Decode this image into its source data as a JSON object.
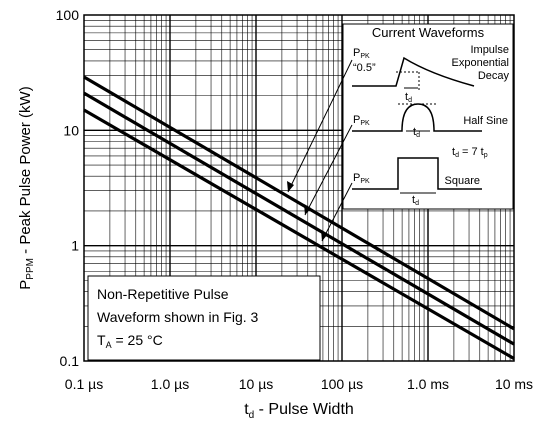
{
  "chart_data": {
    "type": "line",
    "xscale": "log",
    "yscale": "log",
    "xlim": [
      1e-07,
      0.01
    ],
    "ylim": [
      0.1,
      100
    ],
    "grid": true,
    "x_ticks": [
      {
        "value": 1e-07,
        "label": "0.1 µs"
      },
      {
        "value": 1e-06,
        "label": "1.0 µs"
      },
      {
        "value": 1e-05,
        "label": "10 µs"
      },
      {
        "value": 0.0001,
        "label": "100 µs"
      },
      {
        "value": 0.001,
        "label": "1.0 ms"
      },
      {
        "value": 0.01,
        "label": "10 ms"
      }
    ],
    "y_ticks": [
      {
        "value": 0.1,
        "label": "0.1"
      },
      {
        "value": 1,
        "label": "1"
      },
      {
        "value": 10,
        "label": "10"
      },
      {
        "value": 100,
        "label": "100"
      }
    ],
    "ylabel": {
      "main": "P",
      "sub": "PPM",
      "rest": " - Peak Pulse Power (kW)"
    },
    "xlabel": {
      "main": "t",
      "sub": "d",
      "rest": " - Pulse Width"
    },
    "series": [
      {
        "x": [
          1e-07,
          0.01
        ],
        "y": [
          29,
          0.19
        ]
      },
      {
        "x": [
          1e-07,
          0.01
        ],
        "y": [
          21,
          0.14
        ]
      },
      {
        "x": [
          1e-07,
          0.01
        ],
        "y": [
          15,
          0.105
        ]
      }
    ],
    "annotation_box": {
      "line1": "Non-Repetitive Pulse",
      "line2": "Waveform shown in Fig. 3",
      "line3_main": "T",
      "line3_sub": "A",
      "line3_rest": " = 25 °C"
    },
    "inset": {
      "title": "Current Waveforms",
      "ppk_main": "P",
      "ppk_sub": "PK",
      "half_value": "“0.5”",
      "impulse_1": "Impulse",
      "impulse_2": "Exponential",
      "impulse_3": "Decay",
      "td_main": "t",
      "td_sub": "d",
      "half_sine": "Half Sine",
      "relation_main": "t",
      "relation_sub1": "d",
      "relation_mid": " = 7 t",
      "relation_sub2": "p",
      "square": "Square"
    }
  }
}
